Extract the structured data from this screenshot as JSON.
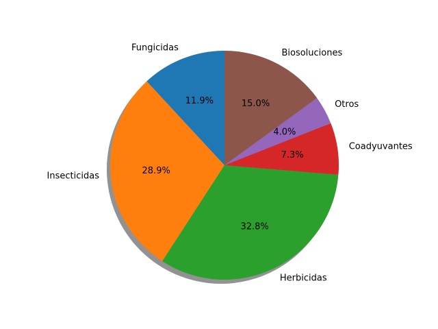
{
  "chart_data": {
    "type": "pie",
    "title": "",
    "slices": [
      {
        "label": "Fungicidas",
        "value": 11.9,
        "pct_label": "11.9%",
        "color": "#1f77b4"
      },
      {
        "label": "Insecticidas",
        "value": 28.9,
        "pct_label": "28.9%",
        "color": "#ff7f0e"
      },
      {
        "label": "Herbicidas",
        "value": 32.8,
        "pct_label": "32.8%",
        "color": "#2ca02c"
      },
      {
        "label": "Coadyuvantes",
        "value": 7.3,
        "pct_label": "7.3%",
        "color": "#d62728"
      },
      {
        "label": "Otros",
        "value": 4.0,
        "pct_label": "4.0%",
        "color": "#9467bd"
      },
      {
        "label": "Biosoluciones",
        "value": 15.0,
        "pct_label": "15.0%",
        "color": "#8c564b"
      }
    ],
    "start_angle_deg": 90,
    "direction": "counterclockwise",
    "shadow": true
  }
}
